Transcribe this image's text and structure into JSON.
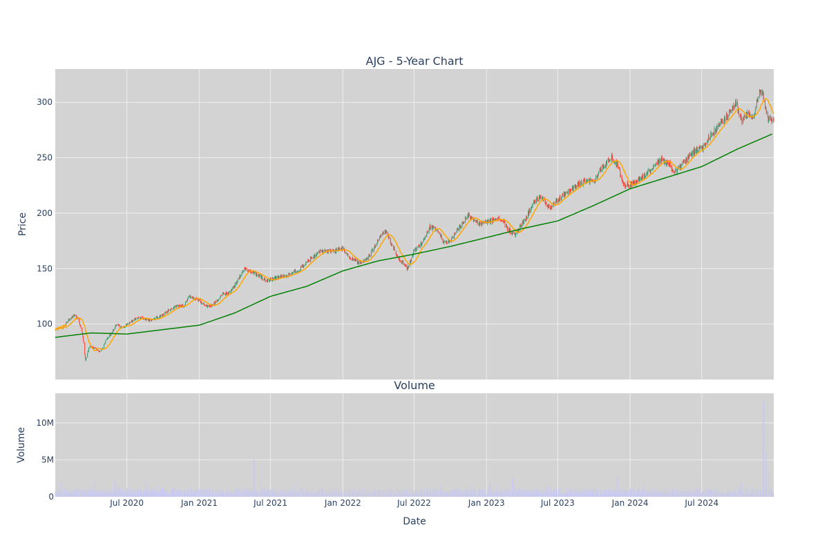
{
  "chart_data": {
    "type": "candlestick",
    "title": "AJG - 5-Year Chart",
    "subplot_title": "Volume",
    "xlabel": "Date",
    "ylabel": "Price",
    "volume_ylabel": "Volume",
    "x_range": [
      "2020-01-01",
      "2024-12-31"
    ],
    "price_ylim": [
      50,
      330
    ],
    "volume_ylim": [
      0,
      14000000
    ],
    "grid": true,
    "price_ticks": [
      100,
      150,
      200,
      250,
      300
    ],
    "volume_ticks": [
      {
        "value": 0,
        "label": "0"
      },
      {
        "value": 5000000,
        "label": "5M"
      },
      {
        "value": 10000000,
        "label": "10M"
      }
    ],
    "x_ticks": [
      {
        "date": "2020-07-01",
        "label": "Jul 2020"
      },
      {
        "date": "2021-01-01",
        "label": "Jan 2021"
      },
      {
        "date": "2021-07-01",
        "label": "Jul 2021"
      },
      {
        "date": "2022-01-01",
        "label": "Jan 2022"
      },
      {
        "date": "2022-07-01",
        "label": "Jul 2022"
      },
      {
        "date": "2023-01-01",
        "label": "Jan 2023"
      },
      {
        "date": "2023-07-01",
        "label": "Jul 2023"
      },
      {
        "date": "2024-01-01",
        "label": "Jan 2024"
      },
      {
        "date": "2024-07-01",
        "label": "Jul 2024"
      }
    ],
    "colors": {
      "increasing": "#3d9970",
      "decreasing": "#ff4136",
      "sma_short": "#ffa500",
      "sma_long": "#008000",
      "volume": "#c8c8f0",
      "plot_bg": "#d3d3d3",
      "grid": "#eeeeee",
      "text": "#2a3f5f"
    },
    "price_path": [
      [
        "2020-01-02",
        95
      ],
      [
        "2020-01-20",
        97
      ],
      [
        "2020-02-05",
        104
      ],
      [
        "2020-02-20",
        108
      ],
      [
        "2020-03-01",
        103
      ],
      [
        "2020-03-10",
        92
      ],
      [
        "2020-03-18",
        67
      ],
      [
        "2020-03-28",
        80
      ],
      [
        "2020-04-10",
        78
      ],
      [
        "2020-04-25",
        75
      ],
      [
        "2020-05-10",
        86
      ],
      [
        "2020-05-25",
        93
      ],
      [
        "2020-06-05",
        100
      ],
      [
        "2020-06-20",
        96
      ],
      [
        "2020-07-10",
        102
      ],
      [
        "2020-08-01",
        106
      ],
      [
        "2020-09-01",
        103
      ],
      [
        "2020-10-01",
        109
      ],
      [
        "2020-11-01",
        116
      ],
      [
        "2020-11-25",
        117
      ],
      [
        "2020-12-05",
        125
      ],
      [
        "2021-01-01",
        121
      ],
      [
        "2021-01-25",
        115
      ],
      [
        "2021-02-15",
        121
      ],
      [
        "2021-03-01",
        127
      ],
      [
        "2021-03-20",
        128
      ],
      [
        "2021-04-10",
        140
      ],
      [
        "2021-04-25",
        150
      ],
      [
        "2021-05-05",
        148
      ],
      [
        "2021-06-01",
        144
      ],
      [
        "2021-06-20",
        139
      ],
      [
        "2021-07-10",
        141
      ],
      [
        "2021-08-15",
        144
      ],
      [
        "2021-09-15",
        150
      ],
      [
        "2021-10-15",
        160
      ],
      [
        "2021-11-01",
        165
      ],
      [
        "2021-12-10",
        166
      ],
      [
        "2022-01-01",
        168
      ],
      [
        "2022-01-15",
        161
      ],
      [
        "2022-02-10",
        155
      ],
      [
        "2022-03-01",
        158
      ],
      [
        "2022-03-20",
        168
      ],
      [
        "2022-04-10",
        182
      ],
      [
        "2022-04-20",
        183
      ],
      [
        "2022-05-10",
        168
      ],
      [
        "2022-05-25",
        158
      ],
      [
        "2022-06-15",
        150
      ],
      [
        "2022-07-01",
        166
      ],
      [
        "2022-07-25",
        175
      ],
      [
        "2022-08-10",
        188
      ],
      [
        "2022-09-01",
        184
      ],
      [
        "2022-09-15",
        173
      ],
      [
        "2022-10-01",
        175
      ],
      [
        "2022-10-20",
        185
      ],
      [
        "2022-11-15",
        198
      ],
      [
        "2022-12-15",
        190
      ],
      [
        "2023-01-10",
        193
      ],
      [
        "2023-02-10",
        195
      ],
      [
        "2023-02-25",
        185
      ],
      [
        "2023-03-15",
        180
      ],
      [
        "2023-04-10",
        195
      ],
      [
        "2023-05-01",
        210
      ],
      [
        "2023-05-20",
        215
      ],
      [
        "2023-06-10",
        205
      ],
      [
        "2023-07-01",
        212
      ],
      [
        "2023-07-20",
        218
      ],
      [
        "2023-08-20",
        225
      ],
      [
        "2023-09-10",
        230
      ],
      [
        "2023-10-01",
        228
      ],
      [
        "2023-10-20",
        240
      ],
      [
        "2023-11-15",
        250
      ],
      [
        "2023-12-01",
        243
      ],
      [
        "2023-12-15",
        225
      ],
      [
        "2024-01-01",
        225
      ],
      [
        "2024-02-10",
        235
      ],
      [
        "2024-03-20",
        248
      ],
      [
        "2024-04-10",
        245
      ],
      [
        "2024-04-20",
        235
      ],
      [
        "2024-05-15",
        245
      ],
      [
        "2024-06-10",
        255
      ],
      [
        "2024-07-01",
        258
      ],
      [
        "2024-07-20",
        268
      ],
      [
        "2024-08-15",
        280
      ],
      [
        "2024-09-10",
        290
      ],
      [
        "2024-09-25",
        300
      ],
      [
        "2024-10-10",
        283
      ],
      [
        "2024-10-25",
        290
      ],
      [
        "2024-11-10",
        285
      ],
      [
        "2024-11-25",
        312
      ],
      [
        "2024-12-05",
        305
      ],
      [
        "2024-12-15",
        285
      ],
      [
        "2024-12-31",
        285
      ]
    ],
    "sma_long_path": [
      [
        "2020-01-01",
        88
      ],
      [
        "2020-04-01",
        92
      ],
      [
        "2020-07-01",
        91
      ],
      [
        "2020-10-01",
        95
      ],
      [
        "2021-01-01",
        99
      ],
      [
        "2021-04-01",
        110
      ],
      [
        "2021-07-01",
        125
      ],
      [
        "2021-10-01",
        134
      ],
      [
        "2022-01-01",
        148
      ],
      [
        "2022-04-01",
        157
      ],
      [
        "2022-07-01",
        163
      ],
      [
        "2022-10-01",
        170
      ],
      [
        "2023-01-01",
        178
      ],
      [
        "2023-04-01",
        186
      ],
      [
        "2023-07-01",
        193
      ],
      [
        "2023-10-01",
        207
      ],
      [
        "2024-01-01",
        222
      ],
      [
        "2024-04-01",
        232
      ],
      [
        "2024-07-01",
        242
      ],
      [
        "2024-10-01",
        258
      ],
      [
        "2024-12-31",
        272
      ]
    ],
    "volume_spikes": [
      [
        "2021-05-20",
        5000000
      ],
      [
        "2020-06-01",
        2300000
      ],
      [
        "2023-01-10",
        1800000
      ],
      [
        "2023-03-10",
        2600000
      ],
      [
        "2023-12-01",
        2500000
      ],
      [
        "2024-12-05",
        13000000
      ],
      [
        "2024-12-12",
        6000000
      ],
      [
        "2024-12-20",
        3500000
      ]
    ]
  }
}
